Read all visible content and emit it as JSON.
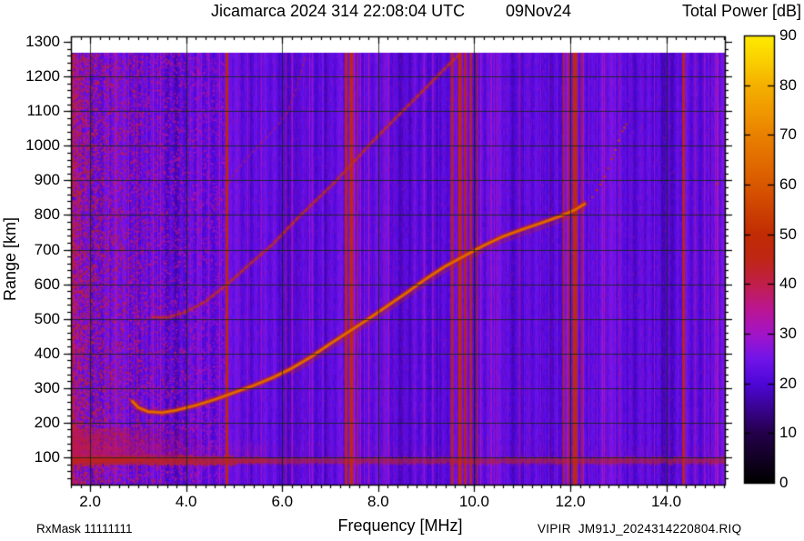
{
  "header": {
    "title_left": "Jicamarca 2024 314 22:08:04 UTC",
    "title_date": "09Nov24"
  },
  "footer": {
    "rx_mask": "RxMask 11111111",
    "file_label": "VIPIR  JM91J_2024314220804.RIQ"
  },
  "chart_data": {
    "type": "heatmap",
    "title": "Jicamarca 2024 314 22:08:04 UTC 09Nov24",
    "xlabel": "Frequency [MHz]",
    "ylabel": "Range [km]",
    "xlim": [
      1.6,
      15.22
    ],
    "ylim": [
      21,
      1316
    ],
    "x_ticks": [
      2,
      4,
      6,
      8,
      10,
      12,
      14
    ],
    "x_tick_labels": [
      "2.0",
      "4.0",
      "6.0",
      "8.0",
      "10.0",
      "12.0",
      "14.0"
    ],
    "x_minor_step": 0.2,
    "y_ticks": [
      100,
      200,
      300,
      400,
      500,
      600,
      700,
      800,
      900,
      1000,
      1100,
      1200,
      1300
    ],
    "y_minor_step": 20,
    "grid": true,
    "data_top_km": 1269,
    "background_db": 22,
    "colorbar": {
      "title": "Total Power [dB]",
      "min": 0,
      "max": 90,
      "tick_step": 10,
      "tick_labels": [
        "0",
        "10",
        "20",
        "30",
        "40",
        "50",
        "60",
        "70",
        "80",
        "90"
      ],
      "palette": [
        [
          0,
          "#000000"
        ],
        [
          10,
          "#24004a"
        ],
        [
          20,
          "#4e07d8"
        ],
        [
          25,
          "#7214e9"
        ],
        [
          30,
          "#a414c8"
        ],
        [
          35,
          "#bb1691"
        ],
        [
          40,
          "#c11f4a"
        ],
        [
          45,
          "#c02615"
        ],
        [
          50,
          "#c22c04"
        ],
        [
          55,
          "#cd4202"
        ],
        [
          60,
          "#d95800"
        ],
        [
          65,
          "#e26d00"
        ],
        [
          70,
          "#e98100"
        ],
        [
          75,
          "#f09a00"
        ],
        [
          80,
          "#f5b000"
        ],
        [
          85,
          "#fad000"
        ],
        [
          90,
          "#ffeb00"
        ]
      ]
    },
    "ground_echo": {
      "center_km": 90,
      "thickness_km": 25,
      "db": 45
    },
    "noise_blob": {
      "f_range_mhz": [
        1.6,
        4.3
      ],
      "km_range": [
        90,
        185
      ],
      "db": 38
    },
    "left_noise": {
      "f_max_mhz": 2.8,
      "db": 44
    },
    "rfi_columns": [
      "f_mhz",
      "width_px",
      "db",
      "alpha"
    ],
    "rfi_lines": [
      [
        4.85,
        3,
        47,
        0.95
      ],
      [
        7.33,
        3,
        47,
        0.9
      ],
      [
        7.44,
        4,
        49,
        0.95
      ],
      [
        7.57,
        2,
        42,
        0.6
      ],
      [
        9.54,
        3,
        46,
        0.85
      ],
      [
        9.7,
        4,
        49,
        0.95
      ],
      [
        9.81,
        3,
        47,
        0.85
      ],
      [
        9.93,
        3,
        46,
        0.8
      ],
      [
        10.06,
        2,
        44,
        0.7
      ],
      [
        11.86,
        2,
        46,
        0.85
      ],
      [
        11.97,
        2,
        45,
        0.8
      ],
      [
        12.1,
        5,
        49,
        0.95
      ],
      [
        12.24,
        2,
        44,
        0.7
      ],
      [
        14.36,
        3,
        47,
        0.9
      ],
      [
        2.98,
        2,
        36,
        0.4
      ],
      [
        5.12,
        1,
        34,
        0.35
      ],
      [
        5.32,
        1,
        33,
        0.3
      ],
      [
        5.55,
        1,
        33,
        0.3
      ],
      [
        6.08,
        2,
        35,
        0.45
      ],
      [
        6.2,
        2,
        34,
        0.4
      ],
      [
        6.33,
        1,
        33,
        0.35
      ],
      [
        6.48,
        1,
        32,
        0.3
      ],
      [
        6.62,
        1,
        33,
        0.3
      ],
      [
        6.95,
        1,
        32,
        0.3
      ],
      [
        8.12,
        2,
        34,
        0.4
      ],
      [
        8.32,
        1,
        33,
        0.3
      ],
      [
        8.52,
        1,
        33,
        0.3
      ],
      [
        8.72,
        1,
        33,
        0.35
      ],
      [
        8.92,
        1,
        32,
        0.3
      ],
      [
        9.15,
        1,
        33,
        0.3
      ],
      [
        10.28,
        1,
        34,
        0.35
      ],
      [
        10.46,
        2,
        34,
        0.4
      ],
      [
        10.62,
        1,
        33,
        0.3
      ],
      [
        10.95,
        2,
        35,
        0.45
      ],
      [
        11.15,
        1,
        33,
        0.3
      ],
      [
        11.42,
        1,
        33,
        0.3
      ],
      [
        11.6,
        1,
        33,
        0.3
      ],
      [
        12.55,
        1,
        33,
        0.3
      ],
      [
        12.75,
        1,
        33,
        0.3
      ],
      [
        13.02,
        2,
        34,
        0.4
      ],
      [
        13.28,
        1,
        33,
        0.3
      ],
      [
        13.52,
        1,
        33,
        0.35
      ],
      [
        13.75,
        1,
        33,
        0.3
      ],
      [
        14.05,
        1,
        33,
        0.3
      ],
      [
        14.6,
        2,
        34,
        0.4
      ],
      [
        14.78,
        1,
        33,
        0.3
      ],
      [
        14.95,
        1,
        34,
        0.35
      ]
    ],
    "trace_point_columns": [
      "f_mhz",
      "range_km"
    ],
    "traces": [
      {
        "name": "F-region echo 1st hop",
        "style": "solid",
        "db": 64,
        "points": [
          [
            2.88,
            262
          ],
          [
            3.0,
            244
          ],
          [
            3.2,
            232
          ],
          [
            3.5,
            229
          ],
          [
            3.8,
            236
          ],
          [
            4.2,
            250
          ],
          [
            4.6,
            267
          ],
          [
            5.0,
            287
          ],
          [
            5.4,
            307
          ],
          [
            5.8,
            330
          ],
          [
            6.2,
            357
          ],
          [
            6.6,
            390
          ],
          [
            7.0,
            428
          ],
          [
            7.4,
            464
          ],
          [
            7.8,
            500
          ],
          [
            8.2,
            538
          ],
          [
            8.6,
            576
          ],
          [
            9.0,
            616
          ],
          [
            9.4,
            652
          ],
          [
            9.8,
            682
          ],
          [
            10.2,
            712
          ],
          [
            10.6,
            738
          ],
          [
            11.0,
            758
          ],
          [
            11.4,
            777
          ],
          [
            11.8,
            797
          ],
          [
            12.1,
            815
          ],
          [
            12.3,
            832
          ]
        ]
      },
      {
        "name": "F-region echo 2nd hop",
        "style": "dotted",
        "db": 52,
        "points": [
          [
            3.3,
            505
          ],
          [
            3.6,
            503
          ],
          [
            4.0,
            520
          ],
          [
            4.4,
            550
          ],
          [
            4.86,
            600
          ],
          [
            5.3,
            655
          ],
          [
            5.8,
            715
          ],
          [
            6.3,
            788
          ],
          [
            7.1,
            895
          ],
          [
            7.8,
            1000
          ],
          [
            8.4,
            1085
          ],
          [
            9.05,
            1175
          ],
          [
            9.45,
            1232
          ],
          [
            9.68,
            1262
          ]
        ]
      },
      {
        "name": "F-region echo 3rd hop",
        "style": "dotted",
        "db": 40,
        "points": [
          [
            4.25,
            755
          ],
          [
            4.6,
            815
          ],
          [
            5.0,
            920
          ],
          [
            5.4,
            985
          ],
          [
            5.8,
            1042
          ],
          [
            6.1,
            1092
          ],
          [
            6.32,
            1175
          ],
          [
            6.48,
            1258
          ]
        ]
      }
    ],
    "scatter_dots": [
      [
        12.45,
        852
      ],
      [
        12.55,
        872
      ],
      [
        12.62,
        888
      ],
      [
        12.7,
        910
      ],
      [
        12.78,
        935
      ],
      [
        12.86,
        962
      ],
      [
        12.93,
        988
      ],
      [
        13.0,
        1015
      ],
      [
        13.08,
        1042
      ],
      [
        13.16,
        1062
      ],
      [
        12.66,
        898
      ],
      [
        12.9,
        972
      ],
      [
        13.12,
        1052
      ],
      [
        15.05,
        890
      ]
    ]
  }
}
